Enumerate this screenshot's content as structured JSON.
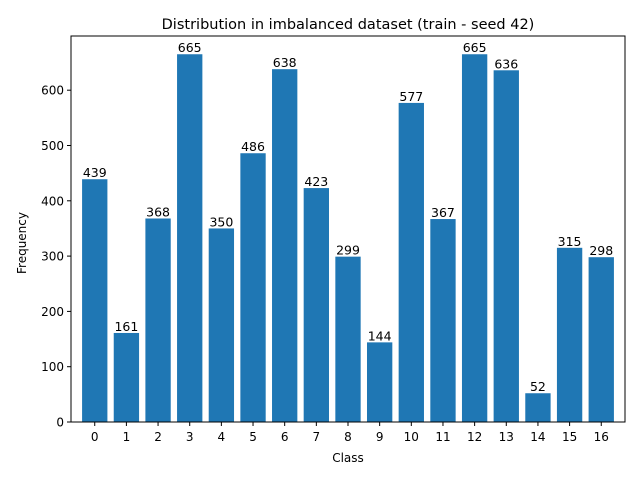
{
  "chart_data": {
    "type": "bar",
    "title": "Distribution in imbalanced dataset (train - seed 42)",
    "xlabel": "Class",
    "ylabel": "Frequency",
    "categories": [
      "0",
      "1",
      "2",
      "3",
      "4",
      "5",
      "6",
      "7",
      "8",
      "9",
      "10",
      "11",
      "12",
      "13",
      "14",
      "15",
      "16"
    ],
    "values": [
      439,
      161,
      368,
      665,
      350,
      486,
      638,
      423,
      299,
      144,
      577,
      367,
      665,
      636,
      52,
      315,
      298
    ],
    "ylim": [
      0,
      698
    ],
    "yticks": [
      0,
      100,
      200,
      300,
      400,
      500,
      600
    ],
    "grid": false,
    "bar_color": "#1f77b4",
    "data_labels": true
  }
}
